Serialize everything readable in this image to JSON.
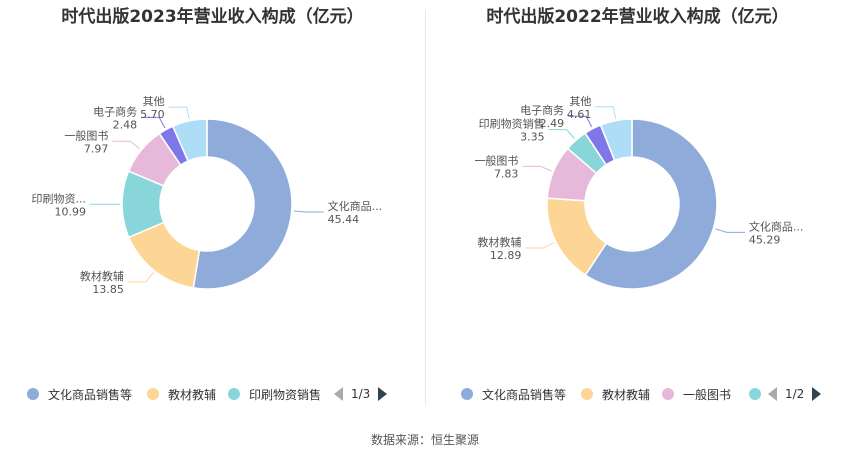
{
  "source": "数据来源：恒生聚源",
  "chart_data": [
    {
      "type": "pie",
      "title": "时代出版2023年营业收入构成（亿元）",
      "slices": [
        {
          "name": "文化商品销售等",
          "label": "文化商品...",
          "value": 45.44,
          "color": "#8eabd9"
        },
        {
          "name": "教材教辅",
          "label": "教材教辅",
          "value": 13.85,
          "color": "#fdd594"
        },
        {
          "name": "印刷物资销售",
          "label": "印刷物资...",
          "value": 10.99,
          "color": "#88d6da"
        },
        {
          "name": "一般图书",
          "label": "一般图书",
          "value": 7.97,
          "color": "#e6b8da"
        },
        {
          "name": "电子商务",
          "label": "电子商务",
          "value": 2.48,
          "color": "#7f77e7"
        },
        {
          "name": "其他",
          "label": "其他",
          "value": 5.7,
          "color": "#aeddf8"
        }
      ],
      "legend": {
        "items": [
          {
            "label": "文化商品销售等",
            "color": "#8eabd9"
          },
          {
            "label": "教材教辅",
            "color": "#fdd594"
          },
          {
            "label": "印刷物资销售",
            "color": "#88d6da"
          }
        ],
        "page": "1/3"
      }
    },
    {
      "type": "pie",
      "title": "时代出版2022年营业收入构成（亿元）",
      "slices": [
        {
          "name": "文化商品销售等",
          "label": "文化商品...",
          "value": 45.29,
          "color": "#8eabd9"
        },
        {
          "name": "教材教辅",
          "label": "教材教辅",
          "value": 12.89,
          "color": "#fdd594"
        },
        {
          "name": "一般图书",
          "label": "一般图书",
          "value": 7.83,
          "color": "#e6b8da"
        },
        {
          "name": "印刷物资销售",
          "label": "印刷物资销售",
          "value": 3.35,
          "color": "#88d6da"
        },
        {
          "name": "电子商务",
          "label": "电子商务",
          "value": 2.49,
          "color": "#7f77e7"
        },
        {
          "name": "其他",
          "label": "其他",
          "value": 4.61,
          "color": "#aeddf8"
        }
      ],
      "legend": {
        "items": [
          {
            "label": "文化商品销售等",
            "color": "#8eabd9"
          },
          {
            "label": "教材教辅",
            "color": "#fdd594"
          },
          {
            "label": "一般图书",
            "color": "#e6b8da"
          },
          {
            "label": "",
            "color": "#88d6da"
          }
        ],
        "page": "1/2"
      }
    }
  ]
}
